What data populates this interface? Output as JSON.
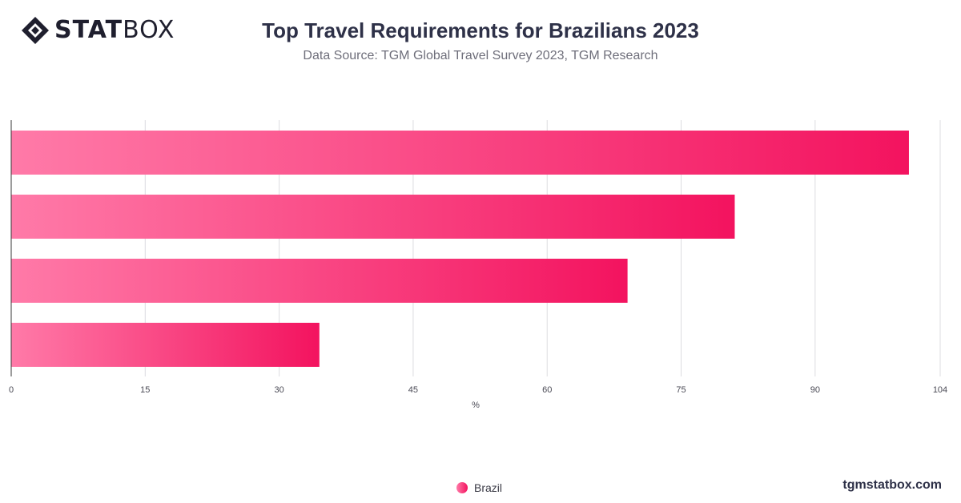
{
  "brand": {
    "logo_strong": "STAT",
    "logo_light": "BOX",
    "footer_url": "tgmstatbox.com"
  },
  "header": {
    "title": "Top Travel Requirements for Brazilians 2023",
    "subtitle": "Data Source: TGM Global Travel Survey 2023, TGM Research"
  },
  "colors": {
    "bar_start": "#ff7aa8",
    "bar_end": "#f3135f",
    "grid": "#dcdce0",
    "axis": "#3a3a3a"
  },
  "chart_data": {
    "type": "bar",
    "orientation": "horizontal",
    "title": "Top Travel Requirements for Brazilians 2023",
    "subtitle": "Data Source: TGM Global Travel Survey 2023, TGM Research",
    "xlabel": "%",
    "ylabel": "",
    "xlim": [
      0,
      104
    ],
    "xticks": [
      0,
      15,
      30,
      45,
      60,
      75,
      90,
      104
    ],
    "grid": true,
    "legend_position": "bottom-center",
    "series": [
      {
        "name": "Brazil",
        "values": [
          100.5,
          81,
          69,
          34.5
        ]
      }
    ]
  }
}
